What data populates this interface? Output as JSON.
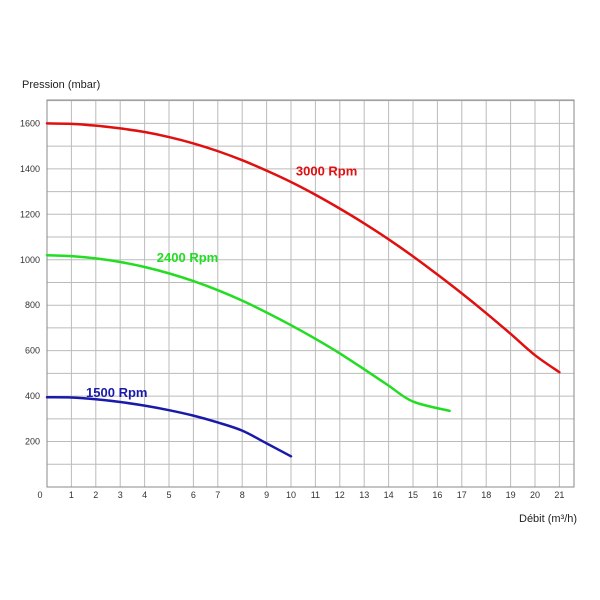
{
  "chart_data": {
    "type": "line",
    "ylabel": "Pression (mbar)",
    "xlabel": "Débit (m³/h)",
    "x_ticks": [
      "0",
      "1",
      "2",
      "3",
      "4",
      "5",
      "6",
      "7",
      "8",
      "9",
      "10",
      "11",
      "12",
      "13",
      "14",
      "15",
      "16",
      "17",
      "18",
      "19",
      "20",
      "21"
    ],
    "y_ticks": [
      "200",
      "400",
      "600",
      "800",
      "1000",
      "1200",
      "1400",
      "1600"
    ],
    "xlim": [
      0,
      21.8
    ],
    "ylim": [
      0,
      1700
    ],
    "grid": true,
    "series": [
      {
        "name": "3000 Rpm",
        "color": "#e01010",
        "points": [
          [
            0,
            1600
          ],
          [
            1,
            1598
          ],
          [
            2,
            1590
          ],
          [
            3,
            1578
          ],
          [
            4,
            1562
          ],
          [
            5,
            1540
          ],
          [
            6,
            1512
          ],
          [
            7,
            1478
          ],
          [
            8,
            1438
          ],
          [
            9,
            1392
          ],
          [
            10,
            1342
          ],
          [
            11,
            1286
          ],
          [
            12,
            1225
          ],
          [
            13,
            1160
          ],
          [
            14,
            1090
          ],
          [
            15,
            1015
          ],
          [
            16,
            935
          ],
          [
            17,
            852
          ],
          [
            18,
            765
          ],
          [
            19,
            674
          ],
          [
            20,
            580
          ],
          [
            21,
            505
          ]
        ]
      },
      {
        "name": "2400 Rpm",
        "color": "#22dd22",
        "points": [
          [
            0,
            1020
          ],
          [
            1,
            1016
          ],
          [
            2,
            1006
          ],
          [
            3,
            990
          ],
          [
            4,
            968
          ],
          [
            5,
            940
          ],
          [
            6,
            906
          ],
          [
            7,
            866
          ],
          [
            8,
            820
          ],
          [
            9,
            768
          ],
          [
            10,
            712
          ],
          [
            11,
            652
          ],
          [
            12,
            588
          ],
          [
            13,
            518
          ],
          [
            14,
            446
          ],
          [
            15,
            376
          ],
          [
            16.5,
            335
          ]
        ]
      },
      {
        "name": "1500 Rpm",
        "color": "#1a1aaa",
        "points": [
          [
            0,
            395
          ],
          [
            1,
            394
          ],
          [
            2,
            386
          ],
          [
            3,
            374
          ],
          [
            4,
            358
          ],
          [
            5,
            338
          ],
          [
            6,
            314
          ],
          [
            7,
            284
          ],
          [
            8,
            248
          ],
          [
            9,
            192
          ],
          [
            10,
            135
          ]
        ]
      }
    ],
    "series_label_anchors": [
      {
        "name": "3000 Rpm",
        "x": 10.2,
        "y": 1370
      },
      {
        "name": "2400 Rpm",
        "x": 4.5,
        "y": 990
      },
      {
        "name": "1500 Rpm",
        "x": 1.6,
        "y": 395
      }
    ]
  }
}
